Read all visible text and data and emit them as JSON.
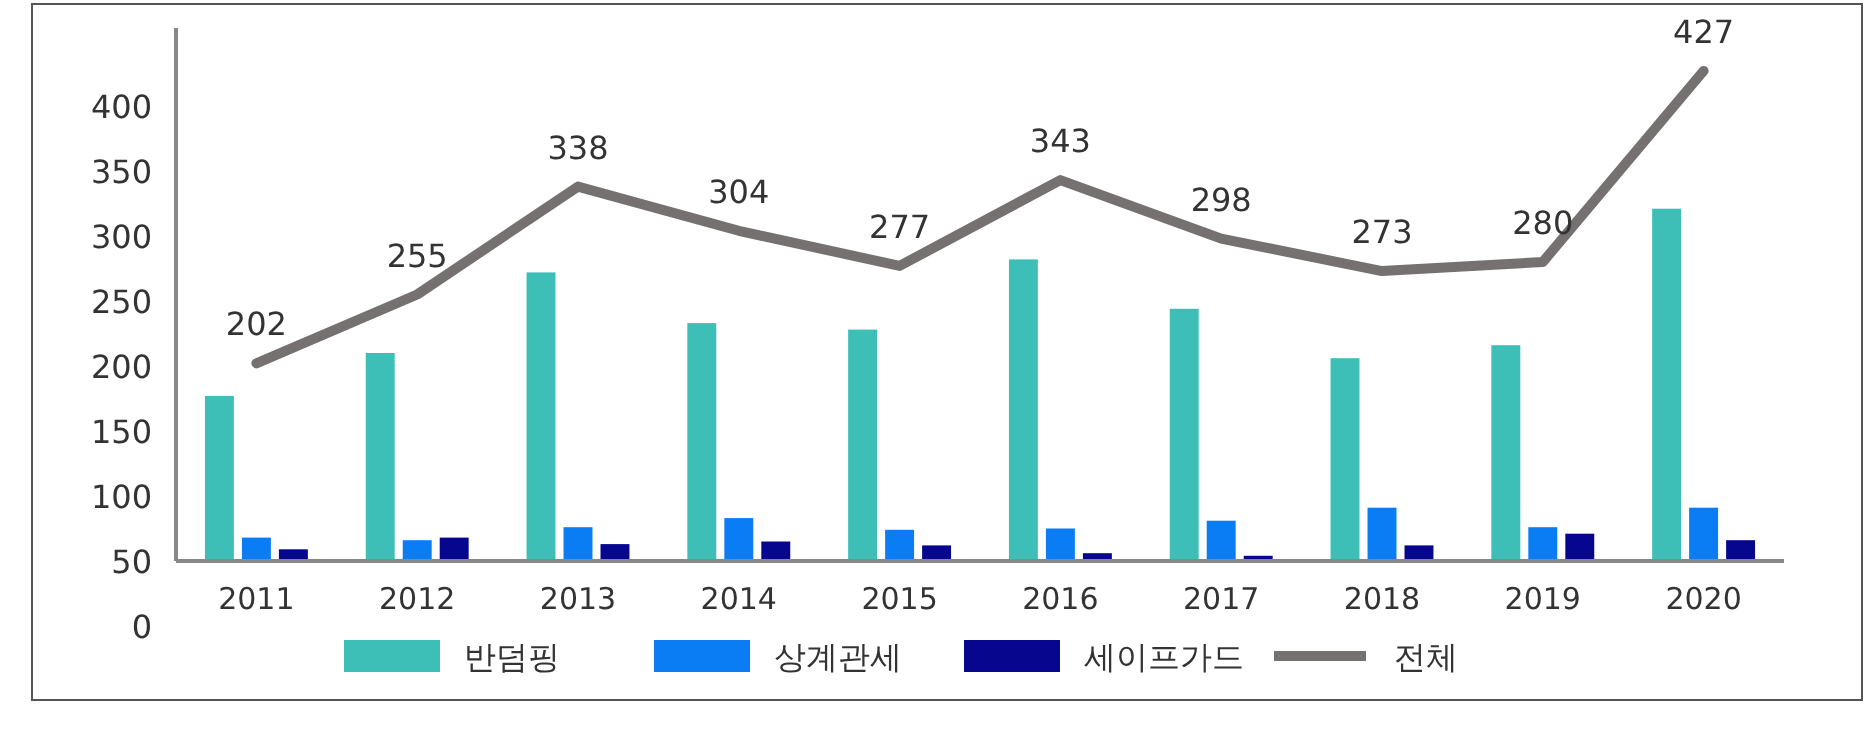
{
  "chart_data": {
    "type": "bar",
    "categories": [
      "2011",
      "2012",
      "2013",
      "2014",
      "2015",
      "2016",
      "2017",
      "2018",
      "2019",
      "2020"
    ],
    "series": [
      {
        "name": "반덤핑",
        "color": "#3dbfb8",
        "base": [
          50,
          50,
          50,
          50,
          50,
          50,
          50,
          50,
          50,
          50
        ],
        "values": [
          127,
          160,
          222,
          183,
          178,
          232,
          194,
          156,
          166,
          271
        ]
      },
      {
        "name": "상계관세",
        "color": "#0a7df5",
        "base": [
          50,
          50,
          50,
          50,
          50,
          50,
          50,
          50,
          50,
          50
        ],
        "values": [
          18,
          16,
          26,
          33,
          24,
          25,
          31,
          41,
          26,
          41
        ]
      },
      {
        "name": "세이프가드",
        "color": "#06068f",
        "base": [
          50,
          50,
          50,
          50,
          50,
          50,
          50,
          50,
          50,
          50
        ],
        "values": [
          9,
          18,
          13,
          15,
          12,
          6,
          4,
          12,
          21,
          16
        ]
      },
      {
        "name": "전체",
        "type": "line",
        "color": "#757171",
        "values": [
          202,
          255,
          338,
          304,
          277,
          343,
          298,
          273,
          280,
          427
        ],
        "value_labels": [
          "202",
          "255",
          "338",
          "304",
          "277",
          "343",
          "298",
          "273",
          "280",
          "427"
        ]
      }
    ],
    "ylim": [
      0,
      460
    ],
    "yticks": [
      0,
      50,
      100,
      150,
      200,
      250,
      300,
      350,
      400
    ],
    "legend": "bottom",
    "marker": "none"
  }
}
